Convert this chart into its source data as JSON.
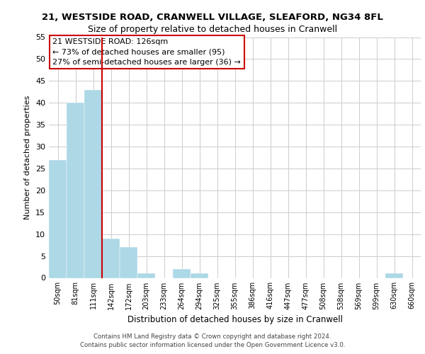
{
  "title_line1": "21, WESTSIDE ROAD, CRANWELL VILLAGE, SLEAFORD, NG34 8FL",
  "title_line2": "Size of property relative to detached houses in Cranwell",
  "xlabel": "Distribution of detached houses by size in Cranwell",
  "ylabel": "Number of detached properties",
  "footer_line1": "Contains HM Land Registry data © Crown copyright and database right 2024.",
  "footer_line2": "Contains public sector information licensed under the Open Government Licence v3.0.",
  "bin_labels": [
    "50sqm",
    "81sqm",
    "111sqm",
    "142sqm",
    "172sqm",
    "203sqm",
    "233sqm",
    "264sqm",
    "294sqm",
    "325sqm",
    "355sqm",
    "386sqm",
    "416sqm",
    "447sqm",
    "477sqm",
    "508sqm",
    "538sqm",
    "569sqm",
    "599sqm",
    "630sqm",
    "660sqm"
  ],
  "bar_heights": [
    27,
    40,
    43,
    9,
    7,
    1,
    0,
    2,
    1,
    0,
    0,
    0,
    0,
    0,
    0,
    0,
    0,
    0,
    0,
    1,
    0
  ],
  "bar_color": "#add8e6",
  "grid_color": "#cccccc",
  "subject_line_color": "#cc0000",
  "annotation_text_line1": "21 WESTSIDE ROAD: 126sqm",
  "annotation_text_line2": "← 73% of detached houses are smaller (95)",
  "annotation_text_line3": "27% of semi-detached houses are larger (36) →",
  "ylim": [
    0,
    55
  ],
  "yticks": [
    0,
    5,
    10,
    15,
    20,
    25,
    30,
    35,
    40,
    45,
    50,
    55
  ]
}
